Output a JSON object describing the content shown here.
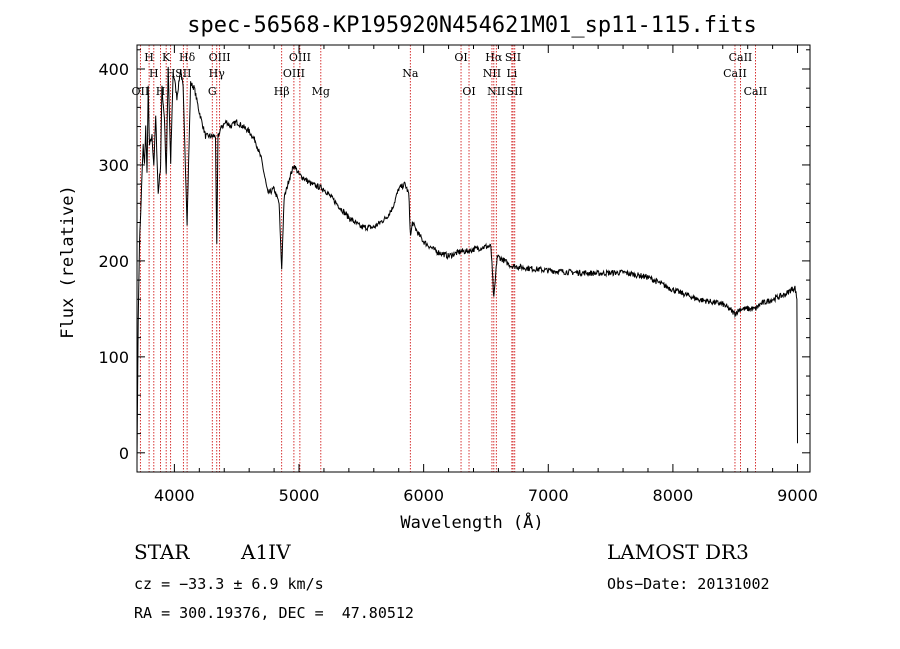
{
  "chart_data": {
    "type": "line",
    "title": "spec-56568-KP195920N454621M01_sp11-115.fits",
    "xlabel": "Wavelength (Å)",
    "ylabel": "Flux (relative)",
    "xlim": [
      3700,
      9100
    ],
    "ylim": [
      -20,
      425
    ],
    "xticks": [
      4000,
      5000,
      6000,
      7000,
      8000,
      9000
    ],
    "yticks": [
      0,
      100,
      200,
      300,
      400
    ],
    "series": [
      {
        "name": "flux",
        "x": [
          3700,
          3710,
          3720,
          3730,
          3740,
          3750,
          3760,
          3770,
          3780,
          3790,
          3800,
          3820,
          3835,
          3850,
          3870,
          3889,
          3900,
          3920,
          3934,
          3950,
          3970,
          3990,
          4000,
          4020,
          4050,
          4070,
          4102,
          4130,
          4160,
          4200,
          4250,
          4300,
          4330,
          4340,
          4350,
          4380,
          4420,
          4450,
          4500,
          4550,
          4600,
          4650,
          4700,
          4750,
          4800,
          4840,
          4861,
          4880,
          4920,
          4960,
          5000,
          5050,
          5100,
          5200,
          5300,
          5400,
          5500,
          5600,
          5700,
          5750,
          5800,
          5850,
          5880,
          5895,
          5910,
          5950,
          6000,
          6100,
          6200,
          6300,
          6350,
          6400,
          6500,
          6540,
          6563,
          6590,
          6650,
          6700,
          6800,
          7000,
          7200,
          7400,
          7600,
          7800,
          8000,
          8200,
          8400,
          8498,
          8542,
          8600,
          8662,
          8700,
          8800,
          8900,
          8950,
          8980,
          8995,
          9000
        ],
        "y": [
          -10,
          140,
          220,
          250,
          290,
          320,
          300,
          340,
          290,
          380,
          320,
          330,
          300,
          350,
          270,
          300,
          380,
          350,
          290,
          400,
          300,
          395,
          390,
          370,
          400,
          380,
          240,
          385,
          380,
          355,
          330,
          330,
          330,
          215,
          330,
          340,
          345,
          340,
          345,
          340,
          335,
          325,
          305,
          270,
          275,
          260,
          190,
          265,
          285,
          300,
          290,
          285,
          280,
          275,
          260,
          245,
          235,
          235,
          245,
          255,
          275,
          280,
          270,
          225,
          240,
          230,
          220,
          210,
          205,
          210,
          210,
          212,
          215,
          215,
          160,
          205,
          200,
          195,
          193,
          190,
          188,
          187,
          188,
          183,
          170,
          160,
          155,
          145,
          150,
          150,
          150,
          155,
          160,
          165,
          170,
          172,
          160,
          10
        ]
      }
    ],
    "spectral_lines": [
      {
        "name": "H",
        "wavelength": 3797,
        "row": 0
      },
      {
        "name": "OII",
        "wavelength": 3727,
        "row": 2
      },
      {
        "name": "H",
        "wavelength": 3835,
        "row": 1
      },
      {
        "name": "H",
        "wavelength": 3889,
        "row": 2
      },
      {
        "name": "K",
        "wavelength": 3934,
        "row": 0
      },
      {
        "name": "H",
        "wavelength": 3970,
        "row": 1
      },
      {
        "name": "Hδ",
        "wavelength": 4102,
        "row": 0
      },
      {
        "name": "SII",
        "wavelength": 4072,
        "row": 1
      },
      {
        "name": "OIII",
        "wavelength": 4363,
        "row": 0
      },
      {
        "name": "Hγ",
        "wavelength": 4340,
        "row": 1
      },
      {
        "name": "G",
        "wavelength": 4304,
        "row": 2
      },
      {
        "name": "Hβ",
        "wavelength": 4861,
        "row": 2
      },
      {
        "name": "OIII",
        "wavelength": 5007,
        "row": 0
      },
      {
        "name": "OIII",
        "wavelength": 4959,
        "row": 1
      },
      {
        "name": "Mg",
        "wavelength": 5175,
        "row": 2
      },
      {
        "name": "Na",
        "wavelength": 5893,
        "row": 1
      },
      {
        "name": "OI",
        "wavelength": 6300,
        "row": 0
      },
      {
        "name": "OI",
        "wavelength": 6364,
        "row": 2
      },
      {
        "name": "Hα",
        "wavelength": 6563,
        "row": 0
      },
      {
        "name": "NII",
        "wavelength": 6548,
        "row": 1
      },
      {
        "name": "NII",
        "wavelength": 6583,
        "row": 2
      },
      {
        "name": "SII",
        "wavelength": 6717,
        "row": 0
      },
      {
        "name": "Li",
        "wavelength": 6708,
        "row": 1
      },
      {
        "name": "SII",
        "wavelength": 6731,
        "row": 2
      },
      {
        "name": "CaII",
        "wavelength": 8542,
        "row": 0
      },
      {
        "name": "CaII",
        "wavelength": 8498,
        "row": 1
      },
      {
        "name": "CaII",
        "wavelength": 8662,
        "row": 2
      }
    ],
    "line_color": "#cc0000",
    "trace_color": "#000000"
  },
  "info": {
    "object_class": "STAR",
    "subclass": "A1IV",
    "survey": "LAMOST DR3",
    "cz_text": "cz = −33.3 ± 6.9 km/s",
    "obs_date_text": "Obs−Date: 20131002",
    "coords_text": "RA = 300.19376, DEC =  47.80512"
  }
}
